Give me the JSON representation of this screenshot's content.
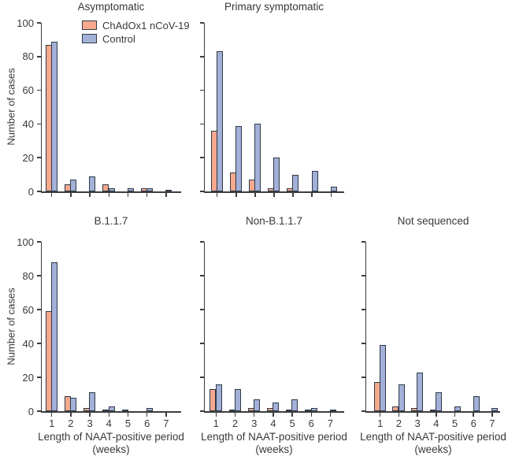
{
  "legend": {
    "items": [
      {
        "label": "ChAdOx1 nCoV-19",
        "color": "#f6a98d"
      },
      {
        "label": "Control",
        "color": "#a3b0d7"
      }
    ],
    "position": "top-left-inside-first-plot"
  },
  "axes": {
    "ylabel": "Number of cases",
    "xlabel_line1": "Length of NAAT-positive period",
    "xlabel_line2": "(weeks)",
    "yticks": [
      0,
      20,
      40,
      60,
      80,
      100
    ],
    "ylim": [
      0,
      100
    ],
    "weeks": [
      "1",
      "2",
      "3",
      "4",
      "5",
      "6",
      "7"
    ],
    "grid": false
  },
  "chart_data": [
    {
      "type": "bar",
      "title": "Asymptomatic",
      "categories": [
        1,
        2,
        3,
        4,
        5,
        6,
        7
      ],
      "ylim": [
        0,
        100
      ],
      "series": [
        {
          "name": "ChAdOx1 nCoV-19",
          "values": [
            87,
            4,
            0,
            4,
            0,
            2,
            0
          ]
        },
        {
          "name": "Control",
          "values": [
            89,
            7,
            9,
            2,
            2,
            2,
            1
          ]
        }
      ]
    },
    {
      "type": "bar",
      "title": "Primary symptomatic",
      "categories": [
        1,
        2,
        3,
        4,
        5,
        6,
        7
      ],
      "ylim": [
        0,
        100
      ],
      "series": [
        {
          "name": "ChAdOx1 nCoV-19",
          "values": [
            36,
            11,
            7,
            2,
            2,
            0,
            0
          ]
        },
        {
          "name": "Control",
          "values": [
            83,
            39,
            40,
            20,
            10,
            12,
            3
          ]
        }
      ]
    },
    {
      "type": "bar",
      "title": "B.1.1.7",
      "categories": [
        1,
        2,
        3,
        4,
        5,
        6,
        7
      ],
      "ylim": [
        0,
        100
      ],
      "series": [
        {
          "name": "ChAdOx1 nCoV-19",
          "values": [
            59,
            9,
            2,
            1,
            1,
            0,
            0
          ]
        },
        {
          "name": "Control",
          "values": [
            88,
            8,
            11,
            3,
            0,
            2,
            0
          ]
        }
      ]
    },
    {
      "type": "bar",
      "title": "Non-B.1.1.7",
      "categories": [
        1,
        2,
        3,
        4,
        5,
        6,
        7
      ],
      "ylim": [
        0,
        100
      ],
      "series": [
        {
          "name": "ChAdOx1 nCoV-19",
          "values": [
            13,
            1,
            2,
            2,
            1,
            1,
            0
          ]
        },
        {
          "name": "Control",
          "values": [
            16,
            13,
            7,
            5,
            7,
            2,
            1
          ]
        }
      ]
    },
    {
      "type": "bar",
      "title": "Not sequenced",
      "categories": [
        1,
        2,
        3,
        4,
        5,
        6,
        7
      ],
      "ylim": [
        0,
        100
      ],
      "series": [
        {
          "name": "ChAdOx1 nCoV-19",
          "values": [
            17,
            3,
            2,
            1,
            0,
            0,
            0
          ]
        },
        {
          "name": "Control",
          "values": [
            39,
            16,
            23,
            11,
            3,
            9,
            2
          ]
        }
      ]
    }
  ]
}
